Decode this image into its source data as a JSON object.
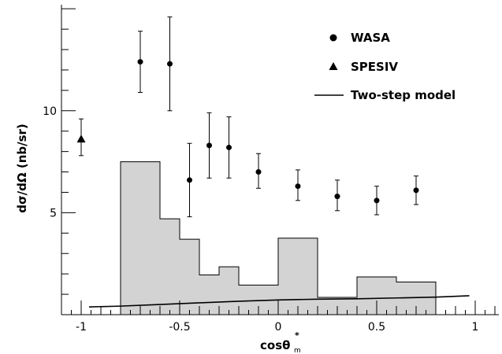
{
  "chart_data": {
    "type": "scatter",
    "xlabel": "cosθ",
    "xlabel_sub": "m",
    "xlabel_sup": "*",
    "ylabel": "dσ/dΩ  (nb/sr)",
    "xlim": [
      -1.1,
      1.12
    ],
    "ylim": [
      0,
      15.2
    ],
    "x_ticks": [
      -1,
      -0.5,
      0,
      0.5,
      1
    ],
    "x_tick_labels": [
      "-1",
      "-0.5",
      "0",
      "0.5",
      "1"
    ],
    "y_ticks": [
      5,
      10
    ],
    "y_tick_labels": [
      "5",
      "10"
    ],
    "legend_position": "top-right",
    "legend": {
      "wasa": "WASA",
      "spesiv": "SPESIV",
      "model": "Two-step model"
    },
    "series": [
      {
        "name": "WASA",
        "marker": "circle",
        "points": [
          {
            "x": -0.7,
            "y": 12.4,
            "lo": 10.9,
            "hi": 13.9
          },
          {
            "x": -0.55,
            "y": 12.3,
            "lo": 10.0,
            "hi": 14.6
          },
          {
            "x": -0.45,
            "y": 6.6,
            "lo": 4.8,
            "hi": 8.4
          },
          {
            "x": -0.35,
            "y": 8.3,
            "lo": 6.7,
            "hi": 9.9
          },
          {
            "x": -0.25,
            "y": 8.2,
            "lo": 6.7,
            "hi": 9.7
          },
          {
            "x": -0.1,
            "y": 7.0,
            "lo": 6.2,
            "hi": 7.9
          },
          {
            "x": 0.1,
            "y": 6.3,
            "lo": 5.6,
            "hi": 7.1
          },
          {
            "x": 0.3,
            "y": 5.8,
            "lo": 5.1,
            "hi": 6.6
          },
          {
            "x": 0.5,
            "y": 5.6,
            "lo": 4.9,
            "hi": 6.3
          },
          {
            "x": 0.7,
            "y": 6.1,
            "lo": 5.4,
            "hi": 6.8
          }
        ]
      },
      {
        "name": "SPESIV",
        "marker": "triangle",
        "points": [
          {
            "x": -1.0,
            "y": 8.6,
            "lo": 7.8,
            "hi": 9.6
          }
        ]
      }
    ],
    "histogram": {
      "edges": [
        -0.8,
        -0.6,
        -0.5,
        -0.4,
        -0.3,
        -0.2,
        -0.1,
        0.0,
        0.2,
        0.3,
        0.4,
        0.6,
        0.8
      ],
      "values": [
        7.5,
        4.7,
        3.7,
        1.95,
        2.35,
        1.45,
        1.45,
        3.75,
        0.85,
        0.85,
        1.85,
        1.6
      ],
      "fill": "#d3d3d3"
    },
    "model_curve": {
      "name": "Two-step model",
      "x": [
        -0.96,
        -0.8,
        -0.6,
        -0.4,
        -0.2,
        0.0,
        0.2,
        0.4,
        0.6,
        0.8,
        0.97
      ],
      "y": [
        0.38,
        0.42,
        0.5,
        0.58,
        0.66,
        0.72,
        0.76,
        0.78,
        0.82,
        0.86,
        0.93
      ]
    }
  }
}
